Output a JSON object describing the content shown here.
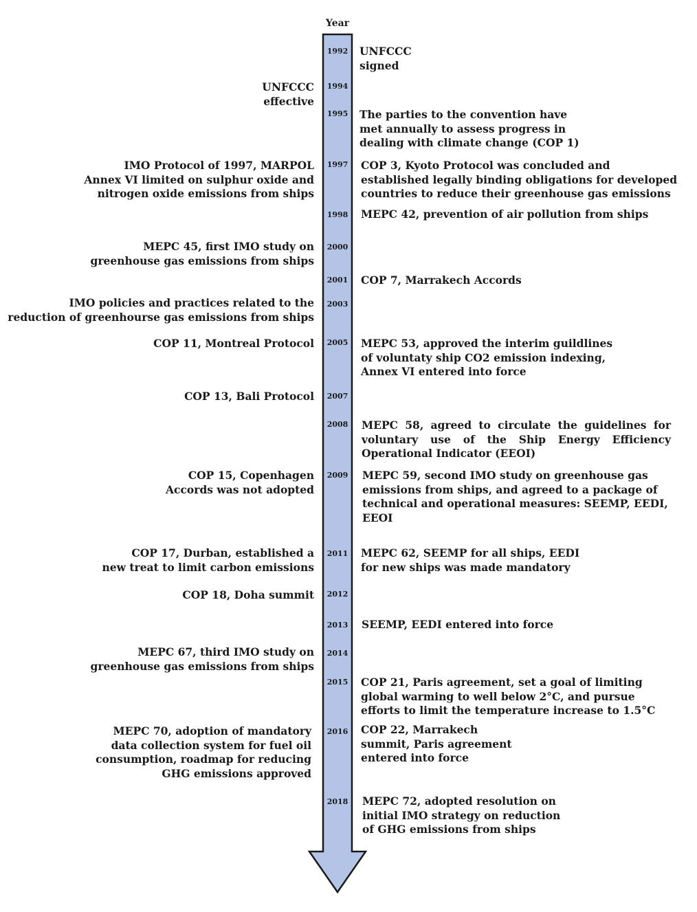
{
  "axis_title": "Year",
  "colors": {
    "arrow_fill": "#b3c4e6",
    "arrow_stroke": "#1a1a1a"
  },
  "years": [
    "1992",
    "1994",
    "1995",
    "1997",
    "1998",
    "2000",
    "2001",
    "2003",
    "2005",
    "2007",
    "2008",
    "2009",
    "2011",
    "2012",
    "2013",
    "2014",
    "2015",
    "2016",
    "2018"
  ],
  "left_events": [
    "UNFCCC\neffective",
    "IMO Protocol of 1997, MARPOL\nAnnex VI limited on sulphur oxide and\nnitrogen oxide emissions from ships",
    "MEPC 45, first IMO study on\ngreenhouse gas emissions from ships",
    "IMO policies and practices related to the\nreduction of greenhourse gas emissions from ships",
    "COP 11, Montreal Protocol",
    "COP 13, Bali Protocol",
    "COP 15, Copenhagen\nAccords was not adopted",
    "COP 17,  Durban, established a\nnew treat to limit carbon emissions",
    "COP 18,  Doha summit",
    "MEPC 67, third IMO study on\ngreenhouse gas emissions from ships",
    "MEPC 70, adoption of mandatory\ndata collection system for fuel oil\nconsumption, roadmap for reducing\nGHG emissions approved"
  ],
  "right_events": [
    "UNFCCC\nsigned",
    "The parties to the convention have\nmet annually to assess progress in\ndealing with climate change (COP 1)",
    "COP 3, Kyoto Protocol was concluded and\nestablished legally binding obligations for developed\ncountries to reduce their greenhouse gas emissions",
    "MEPC 42, prevention of air pollution from ships",
    "COP 7, Marrakech Accords",
    "MEPC 53, approved the interim guildlines\nof voluntaty ship CO2 emission indexing,\nAnnex VI entered into force",
    "MEPC 58, agreed to circulate the guidelines for voluntary use of the Ship Energy Efficiency Operational Indicator (EEOI)",
    "MEPC 59, second IMO study on greenhouse gas\nemissions from ships, and agreed to a package of\ntechnical and operational measures: SEEMP, EEDI,\nEEOI",
    "MEPC 62, SEEMP for all ships, EEDI\nfor new ships was made mandatory",
    "SEEMP, EEDI entered into force",
    "COP 21,  Paris agreement, set a goal of limiting\nglobal warming to well below 2°C, and pursue\nefforts to limit the temperature increase to 1.5°C",
    "COP 22, Marrakech\nsummit, Paris agreement\nentered into force",
    "MEPC 72, adopted resolution on\ninitial IMO strategy on reduction\nof GHG emissions from ships"
  ]
}
